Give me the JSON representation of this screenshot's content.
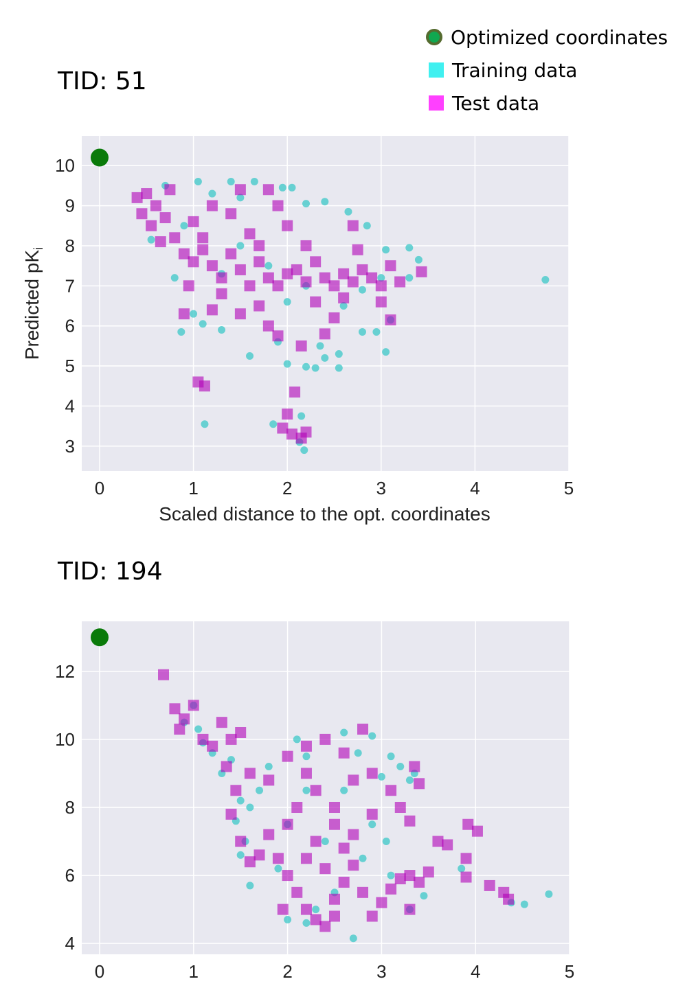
{
  "legend": {
    "items": [
      {
        "label": "Optimized coordinates",
        "marker": "circle",
        "color": "#0f8a0f",
        "edge": "#556b2f"
      },
      {
        "label": "Training data",
        "marker": "square",
        "color": "#40f0f0"
      },
      {
        "label": "Test data",
        "marker": "square",
        "color": "#ff40ff"
      }
    ]
  },
  "colors": {
    "background": "#e8e8f0",
    "grid": "#ffffff",
    "training": "#3cc8c8",
    "test": "#b000b8",
    "optimized": "#0a7a0a"
  },
  "chart_data": [
    {
      "type": "scatter",
      "title": "TID: 51",
      "xlabel": "Scaled distance to the opt. coordinates",
      "ylabel": "Predicted pK",
      "ylabel_subscript": "i",
      "xlim": [
        -0.19,
        5
      ],
      "ylim": [
        2.38,
        10.74
      ],
      "xticks": [
        0,
        1,
        2,
        3,
        4,
        5
      ],
      "yticks": [
        3,
        4,
        5,
        6,
        7,
        8,
        9,
        10
      ],
      "grid": true,
      "optimized": [
        0,
        10.2
      ],
      "series": [
        {
          "name": "Training data",
          "marker": "circle",
          "points": [
            [
              4.75,
              7.15
            ],
            [
              1.12,
              3.55
            ],
            [
              2.18,
              2.9
            ],
            [
              2.13,
              3.1
            ],
            [
              2.15,
              3.75
            ],
            [
              1.85,
              3.55
            ],
            [
              0.87,
              5.85
            ],
            [
              1.6,
              5.25
            ],
            [
              2.0,
              5.05
            ],
            [
              2.2,
              4.98
            ],
            [
              2.3,
              4.95
            ],
            [
              2.55,
              4.95
            ],
            [
              2.55,
              5.3
            ],
            [
              2.8,
              5.85
            ],
            [
              2.95,
              5.85
            ],
            [
              3.05,
              5.35
            ],
            [
              3.3,
              7.95
            ],
            [
              3.3,
              7.2
            ],
            [
              3.4,
              7.65
            ],
            [
              3.1,
              6.15
            ],
            [
              2.65,
              8.85
            ],
            [
              2.4,
              9.1
            ],
            [
              1.05,
              9.6
            ],
            [
              1.4,
              9.6
            ],
            [
              1.65,
              9.6
            ],
            [
              1.95,
              9.45
            ],
            [
              2.05,
              9.45
            ],
            [
              2.2,
              9.05
            ],
            [
              0.7,
              9.5
            ],
            [
              1.2,
              9.3
            ],
            [
              1.5,
              9.2
            ],
            [
              3.05,
              7.9
            ],
            [
              2.85,
              8.5
            ],
            [
              0.55,
              8.15
            ],
            [
              0.8,
              7.2
            ],
            [
              1.0,
              6.3
            ],
            [
              1.1,
              6.05
            ],
            [
              1.3,
              5.9
            ],
            [
              1.9,
              5.6
            ],
            [
              2.4,
              5.2
            ],
            [
              2.35,
              5.5
            ],
            [
              2.6,
              6.5
            ],
            [
              2.8,
              6.9
            ],
            [
              3.0,
              7.2
            ],
            [
              1.5,
              8.0
            ],
            [
              1.8,
              7.5
            ],
            [
              2.2,
              7.0
            ],
            [
              1.3,
              7.3
            ],
            [
              0.9,
              8.5
            ],
            [
              2.0,
              6.6
            ]
          ]
        },
        {
          "name": "Test data",
          "marker": "square",
          "points": [
            [
              0.4,
              9.2
            ],
            [
              0.5,
              9.3
            ],
            [
              0.6,
              9.0
            ],
            [
              0.7,
              8.7
            ],
            [
              0.55,
              8.5
            ],
            [
              0.65,
              8.1
            ],
            [
              0.8,
              8.2
            ],
            [
              0.9,
              7.8
            ],
            [
              1.0,
              7.6
            ],
            [
              1.1,
              7.9
            ],
            [
              1.2,
              7.5
            ],
            [
              1.3,
              7.2
            ],
            [
              1.4,
              7.8
            ],
            [
              1.5,
              7.4
            ],
            [
              1.6,
              7.0
            ],
            [
              1.7,
              7.6
            ],
            [
              1.8,
              7.2
            ],
            [
              1.9,
              7.0
            ],
            [
              2.0,
              7.3
            ],
            [
              2.1,
              7.4
            ],
            [
              2.2,
              7.1
            ],
            [
              2.3,
              7.6
            ],
            [
              2.4,
              7.2
            ],
            [
              2.5,
              7.0
            ],
            [
              2.6,
              7.3
            ],
            [
              2.7,
              7.1
            ],
            [
              2.8,
              7.4
            ],
            [
              2.9,
              7.2
            ],
            [
              3.0,
              7.0
            ],
            [
              3.1,
              7.5
            ],
            [
              3.2,
              7.1
            ],
            [
              3.43,
              7.35
            ],
            [
              1.05,
              4.6
            ],
            [
              1.12,
              4.5
            ],
            [
              2.08,
              4.35
            ],
            [
              2.0,
              3.8
            ],
            [
              2.05,
              3.3
            ],
            [
              2.15,
              3.2
            ],
            [
              2.2,
              3.35
            ],
            [
              1.95,
              3.45
            ],
            [
              0.9,
              6.3
            ],
            [
              1.2,
              6.4
            ],
            [
              1.5,
              6.3
            ],
            [
              1.8,
              6.0
            ],
            [
              1.9,
              5.75
            ],
            [
              2.15,
              5.5
            ],
            [
              2.4,
              5.8
            ],
            [
              2.5,
              6.2
            ],
            [
              3.1,
              6.15
            ],
            [
              2.7,
              8.5
            ],
            [
              2.75,
              7.9
            ],
            [
              1.9,
              9.0
            ],
            [
              2.0,
              8.5
            ],
            [
              1.5,
              9.4
            ],
            [
              1.8,
              9.4
            ],
            [
              1.2,
              9.0
            ],
            [
              1.0,
              8.6
            ],
            [
              1.4,
              8.8
            ],
            [
              1.6,
              8.3
            ],
            [
              2.2,
              8.0
            ],
            [
              0.95,
              7.0
            ],
            [
              1.3,
              6.8
            ],
            [
              1.7,
              6.5
            ],
            [
              2.3,
              6.6
            ],
            [
              2.6,
              6.7
            ],
            [
              3.0,
              6.6
            ],
            [
              0.45,
              8.8
            ],
            [
              0.75,
              9.4
            ],
            [
              1.1,
              8.2
            ],
            [
              1.7,
              8.0
            ]
          ]
        }
      ]
    },
    {
      "type": "scatter",
      "title": "TID: 194",
      "xlabel": "",
      "ylabel": "",
      "xlim": [
        -0.19,
        5
      ],
      "ylim": [
        3.68,
        13.47
      ],
      "xticks": [
        0,
        1,
        2,
        3,
        4,
        5
      ],
      "yticks": [
        4,
        6,
        8,
        10,
        12
      ],
      "grid": true,
      "optimized": [
        0,
        13.0
      ],
      "series": [
        {
          "name": "Training data",
          "marker": "circle",
          "points": [
            [
              4.78,
              5.45
            ],
            [
              4.52,
              5.15
            ],
            [
              4.38,
              5.2
            ],
            [
              3.85,
              6.2
            ],
            [
              3.45,
              5.4
            ],
            [
              3.3,
              5.0
            ],
            [
              2.7,
              4.15
            ],
            [
              2.2,
              4.6
            ],
            [
              2.0,
              4.7
            ],
            [
              1.6,
              5.7
            ],
            [
              1.5,
              6.6
            ],
            [
              1.45,
              7.6
            ],
            [
              1.5,
              8.2
            ],
            [
              1.3,
              9.0
            ],
            [
              1.2,
              9.6
            ],
            [
              1.0,
              11.0
            ],
            [
              0.9,
              10.5
            ],
            [
              1.1,
              9.9
            ],
            [
              2.1,
              10.0
            ],
            [
              2.6,
              10.2
            ],
            [
              2.9,
              10.1
            ],
            [
              3.1,
              9.5
            ],
            [
              3.2,
              9.2
            ],
            [
              3.0,
              8.9
            ],
            [
              3.3,
              8.8
            ],
            [
              3.35,
              9.0
            ],
            [
              2.75,
              9.6
            ],
            [
              2.2,
              9.5
            ],
            [
              1.8,
              9.2
            ],
            [
              1.7,
              8.5
            ],
            [
              1.6,
              8.0
            ],
            [
              2.0,
              7.5
            ],
            [
              2.4,
              7.0
            ],
            [
              2.8,
              6.5
            ],
            [
              3.1,
              6.0
            ],
            [
              2.5,
              5.5
            ],
            [
              2.3,
              5.0
            ],
            [
              1.9,
              6.2
            ],
            [
              1.55,
              7.0
            ],
            [
              2.6,
              8.5
            ],
            [
              2.9,
              7.5
            ],
            [
              3.05,
              7.0
            ],
            [
              2.2,
              8.5
            ],
            [
              1.4,
              9.4
            ],
            [
              1.05,
              10.3
            ]
          ]
        },
        {
          "name": "Test data",
          "marker": "square",
          "points": [
            [
              0.68,
              11.9
            ],
            [
              0.8,
              10.9
            ],
            [
              0.9,
              10.6
            ],
            [
              1.0,
              11.0
            ],
            [
              0.85,
              10.3
            ],
            [
              1.1,
              10.0
            ],
            [
              1.2,
              9.8
            ],
            [
              1.3,
              10.5
            ],
            [
              1.4,
              10.0
            ],
            [
              1.5,
              10.2
            ],
            [
              1.35,
              9.2
            ],
            [
              1.6,
              9.0
            ],
            [
              1.45,
              8.5
            ],
            [
              1.4,
              7.8
            ],
            [
              1.5,
              7.0
            ],
            [
              1.6,
              6.4
            ],
            [
              1.7,
              6.6
            ],
            [
              1.8,
              7.2
            ],
            [
              1.9,
              6.5
            ],
            [
              2.0,
              6.0
            ],
            [
              2.1,
              5.5
            ],
            [
              2.2,
              5.0
            ],
            [
              2.3,
              4.7
            ],
            [
              2.4,
              4.5
            ],
            [
              2.5,
              5.3
            ],
            [
              2.6,
              5.8
            ],
            [
              2.7,
              6.3
            ],
            [
              2.8,
              5.5
            ],
            [
              2.9,
              4.8
            ],
            [
              3.0,
              5.2
            ],
            [
              3.1,
              5.6
            ],
            [
              3.2,
              5.9
            ],
            [
              3.3,
              6.0
            ],
            [
              3.4,
              5.8
            ],
            [
              3.5,
              6.1
            ],
            [
              3.6,
              7.0
            ],
            [
              3.7,
              6.9
            ],
            [
              3.92,
              7.5
            ],
            [
              4.02,
              7.3
            ],
            [
              3.9,
              6.5
            ],
            [
              3.9,
              5.95
            ],
            [
              4.15,
              5.7
            ],
            [
              4.3,
              5.5
            ],
            [
              4.35,
              5.3
            ],
            [
              2.0,
              9.5
            ],
            [
              2.2,
              9.8
            ],
            [
              2.4,
              10.0
            ],
            [
              2.6,
              9.6
            ],
            [
              2.8,
              10.3
            ],
            [
              2.9,
              9.0
            ],
            [
              2.3,
              8.5
            ],
            [
              2.5,
              8.0
            ],
            [
              2.7,
              8.8
            ],
            [
              2.1,
              8.0
            ],
            [
              2.0,
              7.5
            ],
            [
              2.3,
              7.0
            ],
            [
              2.5,
              7.5
            ],
            [
              2.7,
              7.2
            ],
            [
              2.9,
              7.8
            ],
            [
              3.1,
              8.5
            ],
            [
              3.2,
              8.0
            ],
            [
              3.35,
              9.2
            ],
            [
              3.4,
              8.7
            ],
            [
              3.3,
              7.6
            ],
            [
              2.2,
              6.5
            ],
            [
              2.4,
              6.2
            ],
            [
              2.6,
              6.8
            ],
            [
              1.8,
              8.8
            ],
            [
              1.95,
              5.0
            ],
            [
              2.5,
              4.8
            ],
            [
              3.3,
              5.0
            ],
            [
              2.2,
              9.0
            ]
          ]
        }
      ]
    }
  ]
}
